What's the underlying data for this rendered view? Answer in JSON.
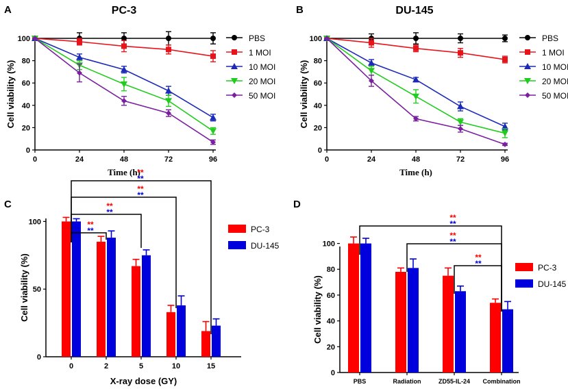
{
  "colors": {
    "PBS": "#000000",
    "MOI1": "#e8141b",
    "MOI10": "#1c2ab8",
    "MOI20": "#22cc1f",
    "MOI50": "#7a1fa0",
    "PC3": "#ff0000",
    "DU145": "#0000dd",
    "bracket": "#000000"
  },
  "chart_data": [
    {
      "panel": "A",
      "type": "line",
      "title": "PC-3",
      "xlabel": "Time (h)",
      "ylabel": "Cell viability (%)",
      "x": [
        0,
        24,
        48,
        72,
        96
      ],
      "xlim": [
        0,
        96
      ],
      "ylim": [
        0,
        100
      ],
      "xticks": [
        "0",
        "24",
        "48",
        "72",
        "96"
      ],
      "yticks": [
        "0",
        "20",
        "40",
        "60",
        "80",
        "100"
      ],
      "series": [
        {
          "name": "PBS",
          "marker": "circle",
          "values": [
            100,
            100,
            100,
            100,
            100
          ],
          "errors": [
            0,
            5,
            5,
            6,
            5
          ]
        },
        {
          "name": "1 MOI",
          "marker": "square",
          "values": [
            100,
            97,
            93,
            90,
            84
          ],
          "errors": [
            0,
            3,
            5,
            4,
            5
          ]
        },
        {
          "name": "10 MOI",
          "marker": "triangle-up",
          "values": [
            100,
            83,
            72,
            53,
            29
          ],
          "errors": [
            0,
            3,
            3,
            4,
            3
          ]
        },
        {
          "name": "20 MOI",
          "marker": "triangle-down",
          "values": [
            100,
            76,
            59,
            44,
            17
          ],
          "errors": [
            0,
            4,
            6,
            5,
            3
          ]
        },
        {
          "name": "50 MOI",
          "marker": "diamond",
          "values": [
            100,
            69,
            44,
            33,
            7
          ],
          "errors": [
            0,
            8,
            4,
            3,
            2
          ]
        }
      ]
    },
    {
      "panel": "B",
      "type": "line",
      "title": "DU-145",
      "xlabel": "Time (h)",
      "ylabel": "Cell viability (%)",
      "x": [
        0,
        24,
        48,
        72,
        96
      ],
      "xlim": [
        0,
        96
      ],
      "ylim": [
        0,
        100
      ],
      "xticks": [
        "0",
        "24",
        "48",
        "72",
        "96"
      ],
      "yticks": [
        "0",
        "20",
        "40",
        "60",
        "80",
        "100"
      ],
      "series": [
        {
          "name": "PBS",
          "marker": "circle",
          "values": [
            100,
            100,
            100,
            100,
            100
          ],
          "errors": [
            0,
            4,
            5,
            4,
            3
          ]
        },
        {
          "name": "1 MOI",
          "marker": "square",
          "values": [
            100,
            96,
            91,
            87,
            81
          ],
          "errors": [
            0,
            4,
            3,
            4,
            3
          ]
        },
        {
          "name": "10 MOI",
          "marker": "triangle-up",
          "values": [
            100,
            78,
            63,
            39,
            21
          ],
          "errors": [
            0,
            3,
            2,
            4,
            3
          ]
        },
        {
          "name": "20 MOI",
          "marker": "triangle-down",
          "values": [
            100,
            71,
            48,
            25,
            15
          ],
          "errors": [
            0,
            4,
            6,
            3,
            4
          ]
        },
        {
          "name": "50 MOI",
          "marker": "diamond",
          "values": [
            100,
            62,
            28,
            19,
            5
          ],
          "errors": [
            0,
            5,
            2,
            3,
            1
          ]
        }
      ]
    },
    {
      "panel": "C",
      "type": "bar",
      "xlabel": "X-ray dose (GY)",
      "ylabel": "Cell viability (%)",
      "categories": [
        "0",
        "2",
        "5",
        "10",
        "15"
      ],
      "ylim": [
        0,
        125
      ],
      "yticks": [
        "0",
        "50",
        "100"
      ],
      "series": [
        {
          "name": "PC-3",
          "values": [
            100,
            85,
            67,
            33,
            19
          ],
          "errors": [
            3,
            4,
            5,
            5,
            7
          ]
        },
        {
          "name": "DU-145",
          "values": [
            100,
            88,
            75,
            38,
            23
          ],
          "errors": [
            2,
            5,
            4,
            7,
            5
          ]
        }
      ],
      "significance": [
        {
          "from": "0",
          "to": "2",
          "label": "**"
        },
        {
          "from": "0",
          "to": "5",
          "label": "**"
        },
        {
          "from": "0",
          "to": "10",
          "label": "**"
        },
        {
          "from": "0",
          "to": "15",
          "label": "**"
        }
      ]
    },
    {
      "panel": "D",
      "type": "bar",
      "xlabel": "",
      "ylabel": "Cell viability (%)",
      "categories": [
        "PBS",
        "Radiation",
        "ZD55-IL-24",
        "Combination"
      ],
      "ylim": [
        0,
        130
      ],
      "yticks": [
        "0",
        "20",
        "40",
        "60",
        "80",
        "100"
      ],
      "series": [
        {
          "name": "PC-3",
          "values": [
            100,
            78,
            75,
            54
          ],
          "errors": [
            5,
            3,
            6,
            3
          ]
        },
        {
          "name": "DU-145",
          "values": [
            100,
            81,
            63,
            49
          ],
          "errors": [
            4,
            7,
            4,
            6
          ]
        }
      ],
      "significance": [
        {
          "from": "PBS",
          "to": "Combination",
          "label": "**"
        },
        {
          "from": "Radiation",
          "to": "Combination",
          "label": "**"
        },
        {
          "from": "ZD55-IL-24",
          "to": "Combination",
          "label": "**"
        }
      ]
    }
  ]
}
